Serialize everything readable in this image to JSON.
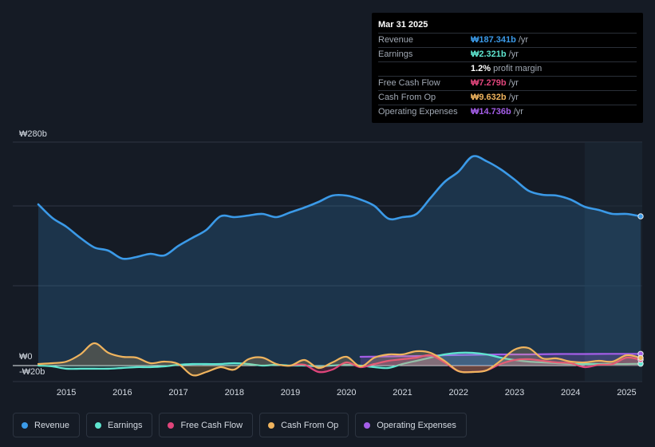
{
  "tooltip": {
    "date": "Mar 31 2025",
    "rows": [
      {
        "label": "Revenue",
        "value": "₩187.341b",
        "unit": "/yr",
        "color": "#3b9ae8"
      },
      {
        "label": "Earnings",
        "value": "₩2.321b",
        "unit": "/yr",
        "color": "#5ee5cf"
      },
      {
        "label": "",
        "value": "1.2%",
        "unit": "profit margin",
        "color": "#ffffff"
      },
      {
        "label": "Free Cash Flow",
        "value": "₩7.279b",
        "unit": "/yr",
        "color": "#e0457b"
      },
      {
        "label": "Cash From Op",
        "value": "₩9.632b",
        "unit": "/yr",
        "color": "#f0b45e"
      },
      {
        "label": "Operating Expenses",
        "value": "₩14.736b",
        "unit": "/yr",
        "color": "#a45ee8"
      }
    ]
  },
  "legend": [
    {
      "label": "Revenue",
      "color": "#3b9ae8"
    },
    {
      "label": "Earnings",
      "color": "#5ee5cf"
    },
    {
      "label": "Free Cash Flow",
      "color": "#e0457b"
    },
    {
      "label": "Cash From Op",
      "color": "#f0b45e"
    },
    {
      "label": "Operating Expenses",
      "color": "#a45ee8"
    }
  ],
  "chart_data": {
    "type": "line",
    "title": "",
    "ylabel_top": "₩280b",
    "ylabel_zero": "₩0",
    "ylabel_bottom": "-₩20b",
    "ylim": [
      -20,
      280
    ],
    "xlim": [
      2014.5,
      2025.25
    ],
    "x_ticks": [
      "2015",
      "2016",
      "2017",
      "2018",
      "2019",
      "2020",
      "2021",
      "2022",
      "2023",
      "2024",
      "2025"
    ],
    "forecast_start": 2024.25,
    "series": [
      {
        "name": "Revenue",
        "color": "#3b9ae8",
        "fill": true,
        "x": [
          2014.5,
          2014.75,
          2015.0,
          2015.25,
          2015.5,
          2015.75,
          2016.0,
          2016.25,
          2016.5,
          2016.75,
          2017.0,
          2017.25,
          2017.5,
          2017.75,
          2018.0,
          2018.25,
          2018.5,
          2018.75,
          2019.0,
          2019.25,
          2019.5,
          2019.75,
          2020.0,
          2020.25,
          2020.5,
          2020.75,
          2021.0,
          2021.25,
          2021.5,
          2021.75,
          2022.0,
          2022.25,
          2022.5,
          2022.75,
          2023.0,
          2023.25,
          2023.5,
          2023.75,
          2024.0,
          2024.25,
          2024.5,
          2024.75,
          2025.0,
          2025.25
        ],
        "y": [
          202,
          185,
          174,
          160,
          148,
          144,
          134,
          136,
          140,
          138,
          150,
          160,
          170,
          187,
          186,
          188,
          190,
          186,
          192,
          198,
          205,
          213,
          213,
          208,
          200,
          184,
          186,
          190,
          210,
          230,
          243,
          262,
          256,
          246,
          233,
          219,
          214,
          213,
          208,
          199,
          195,
          190,
          190,
          187
        ]
      },
      {
        "name": "Earnings",
        "color": "#5ee5cf",
        "x": [
          2014.5,
          2014.75,
          2015.0,
          2015.25,
          2015.5,
          2015.75,
          2016.0,
          2016.25,
          2016.5,
          2016.75,
          2017.0,
          2017.25,
          2017.5,
          2017.75,
          2018.0,
          2018.25,
          2018.5,
          2018.75,
          2019.0,
          2019.25,
          2019.5,
          2019.75,
          2020.0,
          2020.25,
          2020.5,
          2020.75,
          2021.0,
          2021.25,
          2021.5,
          2021.75,
          2022.0,
          2022.25,
          2022.5,
          2022.75,
          2023.0,
          2023.25,
          2023.5,
          2023.75,
          2024.0,
          2024.25,
          2024.5,
          2024.75,
          2025.0,
          2025.25
        ],
        "y": [
          0,
          -1,
          -4,
          -4,
          -4,
          -4,
          -3,
          -2,
          -2,
          -1,
          1,
          2,
          2,
          2,
          3,
          2,
          0,
          1,
          0,
          0,
          -1,
          0,
          1,
          0,
          -2,
          -3,
          2,
          6,
          10,
          14,
          16,
          16,
          14,
          10,
          7,
          5,
          4,
          3,
          2,
          2,
          2,
          2,
          2,
          2.3
        ]
      },
      {
        "name": "Free Cash Flow",
        "color": "#e0457b",
        "x": [
          2019.0,
          2019.25,
          2019.5,
          2019.75,
          2020.0,
          2020.25,
          2020.5,
          2020.75,
          2021.0,
          2021.25,
          2021.5,
          2021.75,
          2022.0,
          2022.25,
          2022.5,
          2022.75,
          2023.0,
          2023.25,
          2023.5,
          2023.75,
          2024.0,
          2024.25,
          2024.5,
          2024.75,
          2025.0,
          2025.25
        ],
        "y": [
          0,
          1,
          -8,
          -5,
          4,
          -2,
          2,
          6,
          8,
          10,
          13,
          4,
          -7,
          -8,
          -6,
          2,
          7,
          8,
          6,
          4,
          3,
          -2,
          1,
          2,
          10,
          7.3
        ]
      },
      {
        "name": "Cash From Op",
        "color": "#f0b45e",
        "x": [
          2014.5,
          2014.75,
          2015.0,
          2015.25,
          2015.5,
          2015.75,
          2016.0,
          2016.25,
          2016.5,
          2016.75,
          2017.0,
          2017.25,
          2017.5,
          2017.75,
          2018.0,
          2018.25,
          2018.5,
          2018.75,
          2019.0,
          2019.25,
          2019.5,
          2019.75,
          2020.0,
          2020.25,
          2020.5,
          2020.75,
          2021.0,
          2021.25,
          2021.5,
          2021.75,
          2022.0,
          2022.25,
          2022.5,
          2022.75,
          2023.0,
          2023.25,
          2023.5,
          2023.75,
          2024.0,
          2024.25,
          2024.5,
          2024.75,
          2025.0,
          2025.25
        ],
        "y": [
          2,
          3,
          5,
          14,
          28,
          16,
          11,
          10,
          3,
          5,
          2,
          -12,
          -8,
          -2,
          -5,
          8,
          10,
          2,
          0,
          7,
          -3,
          4,
          11,
          -1,
          10,
          14,
          14,
          18,
          16,
          6,
          -7,
          -8,
          -6,
          6,
          20,
          22,
          9,
          9,
          5,
          4,
          6,
          5,
          13,
          9.6
        ]
      },
      {
        "name": "Operating Expenses",
        "color": "#a45ee8",
        "x": [
          2020.25,
          2020.75,
          2021.25,
          2021.75,
          2022.25,
          2022.75,
          2023.25,
          2023.75,
          2024.25,
          2024.75,
          2025.25
        ],
        "y": [
          11,
          11.5,
          12,
          13,
          13.5,
          14,
          14,
          14.5,
          14.5,
          14.7,
          14.7
        ]
      }
    ]
  }
}
